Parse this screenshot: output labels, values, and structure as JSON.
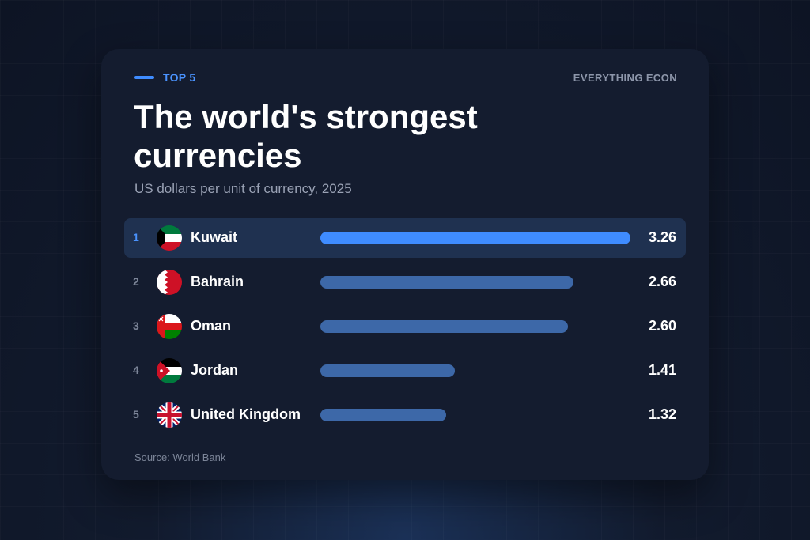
{
  "header": {
    "eyebrow": "TOP 5",
    "brand": "EVERYTHING ECON",
    "title": "The world's strongest currencies",
    "subtitle": "US dollars per unit of currency, 2025"
  },
  "footer": {
    "source": "Source: World Bank"
  },
  "colors": {
    "accent": "#3f8cff",
    "bar": "#3d68a8",
    "highlight_row": "#1f3150",
    "card": "#141c2f"
  },
  "chart_data": {
    "type": "bar",
    "orientation": "horizontal",
    "title": "The world's strongest currencies",
    "subtitle": "US dollars per unit of currency, 2025",
    "categories": [
      "Kuwait",
      "Bahrain",
      "Oman",
      "Jordan",
      "United Kingdom"
    ],
    "values": [
      3.26,
      2.66,
      2.6,
      1.41,
      1.32
    ],
    "value_labels": [
      "3.26",
      "2.66",
      "2.60",
      "1.41",
      "1.32"
    ],
    "ranks": [
      "1",
      "2",
      "3",
      "4",
      "5"
    ],
    "flags": [
      "kuwait-flag-icon",
      "bahrain-flag-icon",
      "oman-flag-icon",
      "jordan-flag-icon",
      "united-kingdom-flag-icon"
    ],
    "highlighted_index": 0,
    "xlim": [
      0,
      3.26
    ],
    "grid": false,
    "legend": "none"
  }
}
